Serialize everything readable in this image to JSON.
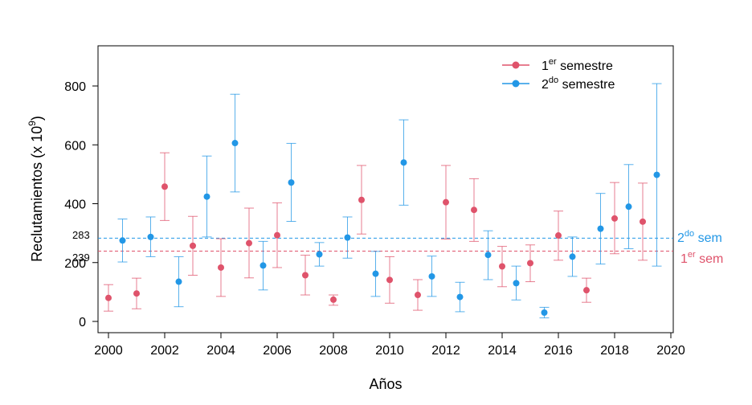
{
  "chart_data": {
    "type": "scatter",
    "xlabel": "Años",
    "ylabel": "Reclutamientos (x 10",
    "ylabel_sup": "9",
    "ylabel_close": ")",
    "xlim": [
      2000,
      2020
    ],
    "ylim": [
      0,
      800
    ],
    "x_ticks": [
      "2000",
      "2002",
      "2004",
      "2006",
      "2008",
      "2010",
      "2012",
      "2014",
      "2016",
      "2018",
      "2020"
    ],
    "y_ticks": [
      "0",
      "200",
      "400",
      "600",
      "800"
    ],
    "colors": {
      "first": "#DF536B",
      "second": "#2297E6"
    },
    "legend": {
      "position": "top-right",
      "first": {
        "base": "1",
        "sup": "er",
        "rest": " semestre"
      },
      "second": {
        "base": "2",
        "sup": "do",
        "rest": " semestre"
      }
    },
    "reference_lines": {
      "second": {
        "value": 283,
        "label": "283",
        "right_base": "2",
        "right_sup": "do",
        "right_rest": " sem"
      },
      "first": {
        "value": 239,
        "label": "239",
        "right_base": "1",
        "right_sup": "er",
        "right_rest": " sem"
      }
    },
    "series": [
      {
        "name": "1er semestre",
        "color": "#DF536B",
        "points": [
          {
            "x": 2000.0,
            "y": 80,
            "lo": 35,
            "hi": 125
          },
          {
            "x": 2001.0,
            "y": 95,
            "lo": 43,
            "hi": 147
          },
          {
            "x": 2002.0,
            "y": 458,
            "lo": 343,
            "hi": 573
          },
          {
            "x": 2003.0,
            "y": 257,
            "lo": 157,
            "hi": 357
          },
          {
            "x": 2004.0,
            "y": 183,
            "lo": 85,
            "hi": 281
          },
          {
            "x": 2005.0,
            "y": 266,
            "lo": 148,
            "hi": 385
          },
          {
            "x": 2006.0,
            "y": 293,
            "lo": 183,
            "hi": 403
          },
          {
            "x": 2007.0,
            "y": 157,
            "lo": 90,
            "hi": 225
          },
          {
            "x": 2008.0,
            "y": 74,
            "lo": 55,
            "hi": 90
          },
          {
            "x": 2009.0,
            "y": 413,
            "lo": 297,
            "hi": 530
          },
          {
            "x": 2010.0,
            "y": 141,
            "lo": 62,
            "hi": 220
          },
          {
            "x": 2011.0,
            "y": 90,
            "lo": 38,
            "hi": 142
          },
          {
            "x": 2012.0,
            "y": 405,
            "lo": 280,
            "hi": 530
          },
          {
            "x": 2013.0,
            "y": 379,
            "lo": 272,
            "hi": 485
          },
          {
            "x": 2014.0,
            "y": 187,
            "lo": 118,
            "hi": 255
          },
          {
            "x": 2015.0,
            "y": 198,
            "lo": 135,
            "hi": 260
          },
          {
            "x": 2016.0,
            "y": 292,
            "lo": 208,
            "hi": 375
          },
          {
            "x": 2017.0,
            "y": 106,
            "lo": 65,
            "hi": 147
          },
          {
            "x": 2018.0,
            "y": 350,
            "lo": 230,
            "hi": 472
          },
          {
            "x": 2019.0,
            "y": 339,
            "lo": 208,
            "hi": 470
          }
        ]
      },
      {
        "name": "2do semestre",
        "color": "#2297E6",
        "points": [
          {
            "x": 2000.5,
            "y": 275,
            "lo": 202,
            "hi": 348
          },
          {
            "x": 2001.5,
            "y": 287,
            "lo": 220,
            "hi": 355
          },
          {
            "x": 2002.5,
            "y": 135,
            "lo": 50,
            "hi": 220
          },
          {
            "x": 2003.5,
            "y": 424,
            "lo": 287,
            "hi": 562
          },
          {
            "x": 2004.5,
            "y": 606,
            "lo": 440,
            "hi": 772
          },
          {
            "x": 2005.5,
            "y": 190,
            "lo": 107,
            "hi": 272
          },
          {
            "x": 2006.5,
            "y": 472,
            "lo": 340,
            "hi": 605
          },
          {
            "x": 2007.5,
            "y": 228,
            "lo": 188,
            "hi": 268
          },
          {
            "x": 2008.5,
            "y": 285,
            "lo": 215,
            "hi": 355
          },
          {
            "x": 2009.5,
            "y": 162,
            "lo": 85,
            "hi": 238
          },
          {
            "x": 2010.5,
            "y": 540,
            "lo": 395,
            "hi": 685
          },
          {
            "x": 2011.5,
            "y": 153,
            "lo": 85,
            "hi": 222
          },
          {
            "x": 2012.5,
            "y": 83,
            "lo": 33,
            "hi": 133
          },
          {
            "x": 2013.5,
            "y": 226,
            "lo": 142,
            "hi": 308
          },
          {
            "x": 2014.5,
            "y": 130,
            "lo": 73,
            "hi": 188
          },
          {
            "x": 2015.5,
            "y": 30,
            "lo": 12,
            "hi": 48
          },
          {
            "x": 2016.5,
            "y": 220,
            "lo": 153,
            "hi": 287
          },
          {
            "x": 2017.5,
            "y": 315,
            "lo": 195,
            "hi": 435
          },
          {
            "x": 2018.5,
            "y": 390,
            "lo": 247,
            "hi": 533
          },
          {
            "x": 2019.5,
            "y": 498,
            "lo": 188,
            "hi": 808
          }
        ]
      }
    ]
  }
}
